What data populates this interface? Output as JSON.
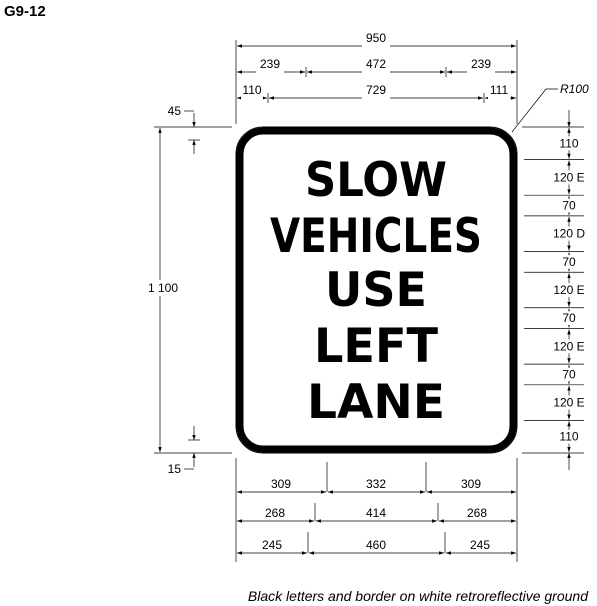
{
  "code": "G9-12",
  "sign_lines": [
    "SLOW",
    "VEHICLES",
    "USE",
    "LEFT",
    "LANE"
  ],
  "corner_radius_label": "R100",
  "top_dims": {
    "overall": "950",
    "row2": [
      "239",
      "472",
      "239"
    ],
    "row3": [
      "110",
      "729",
      "111"
    ]
  },
  "left_dims": {
    "top_margin": "45",
    "height": "1 100",
    "bottom_margin": "15"
  },
  "right_dims": [
    "110",
    "120 E",
    "70",
    "120 D",
    "70",
    "120 E",
    "70",
    "120 E",
    "70",
    "120 E",
    "110"
  ],
  "bottom_dims": {
    "row1": [
      "309",
      "332",
      "309"
    ],
    "row2": [
      "268",
      "414",
      "268"
    ],
    "row3": [
      "245",
      "460",
      "245"
    ]
  },
  "footnote": "Black letters and border on white retroreflective ground",
  "colors": {
    "legend": "#000000",
    "background": "#ffffff"
  }
}
